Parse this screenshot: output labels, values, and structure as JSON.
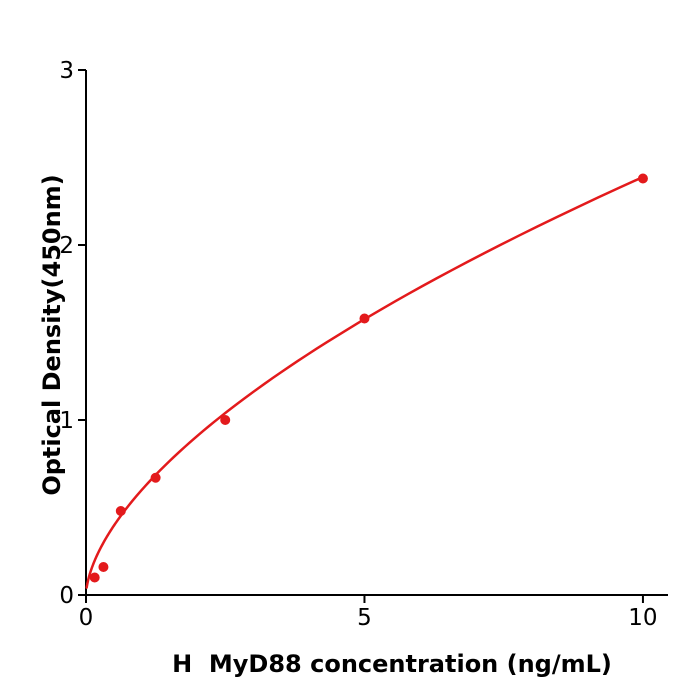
{
  "chart_data": {
    "type": "scatter",
    "title": "",
    "xlabel": "H  MyD88 concentration (ng/mL)",
    "ylabel": "Optical Density(450nm)",
    "series": [
      {
        "x": [
          0.156,
          0.313,
          0.625,
          1.25,
          2.5,
          5,
          10
        ],
        "y": [
          0.1,
          0.16,
          0.48,
          0.67,
          1.0,
          1.58,
          2.38
        ],
        "marker": "circle",
        "color": "#e31a1c"
      }
    ],
    "fit_curve": {
      "model": "power",
      "a": 0.6,
      "b": 0.6,
      "x_start": 0.012,
      "x_end": 10,
      "color": "#e31a1c",
      "width": 2.5
    },
    "xlim": [
      0,
      10.45
    ],
    "ylim": [
      0,
      3
    ],
    "xticks": [
      0,
      5,
      10
    ],
    "yticks": [
      0,
      1,
      2,
      3
    ],
    "grid": false,
    "legend": false,
    "axis_color": "#000000",
    "tick_label_color": "#000000",
    "marker_radius": 5,
    "tick_length": 8,
    "tick_direction": "out"
  }
}
